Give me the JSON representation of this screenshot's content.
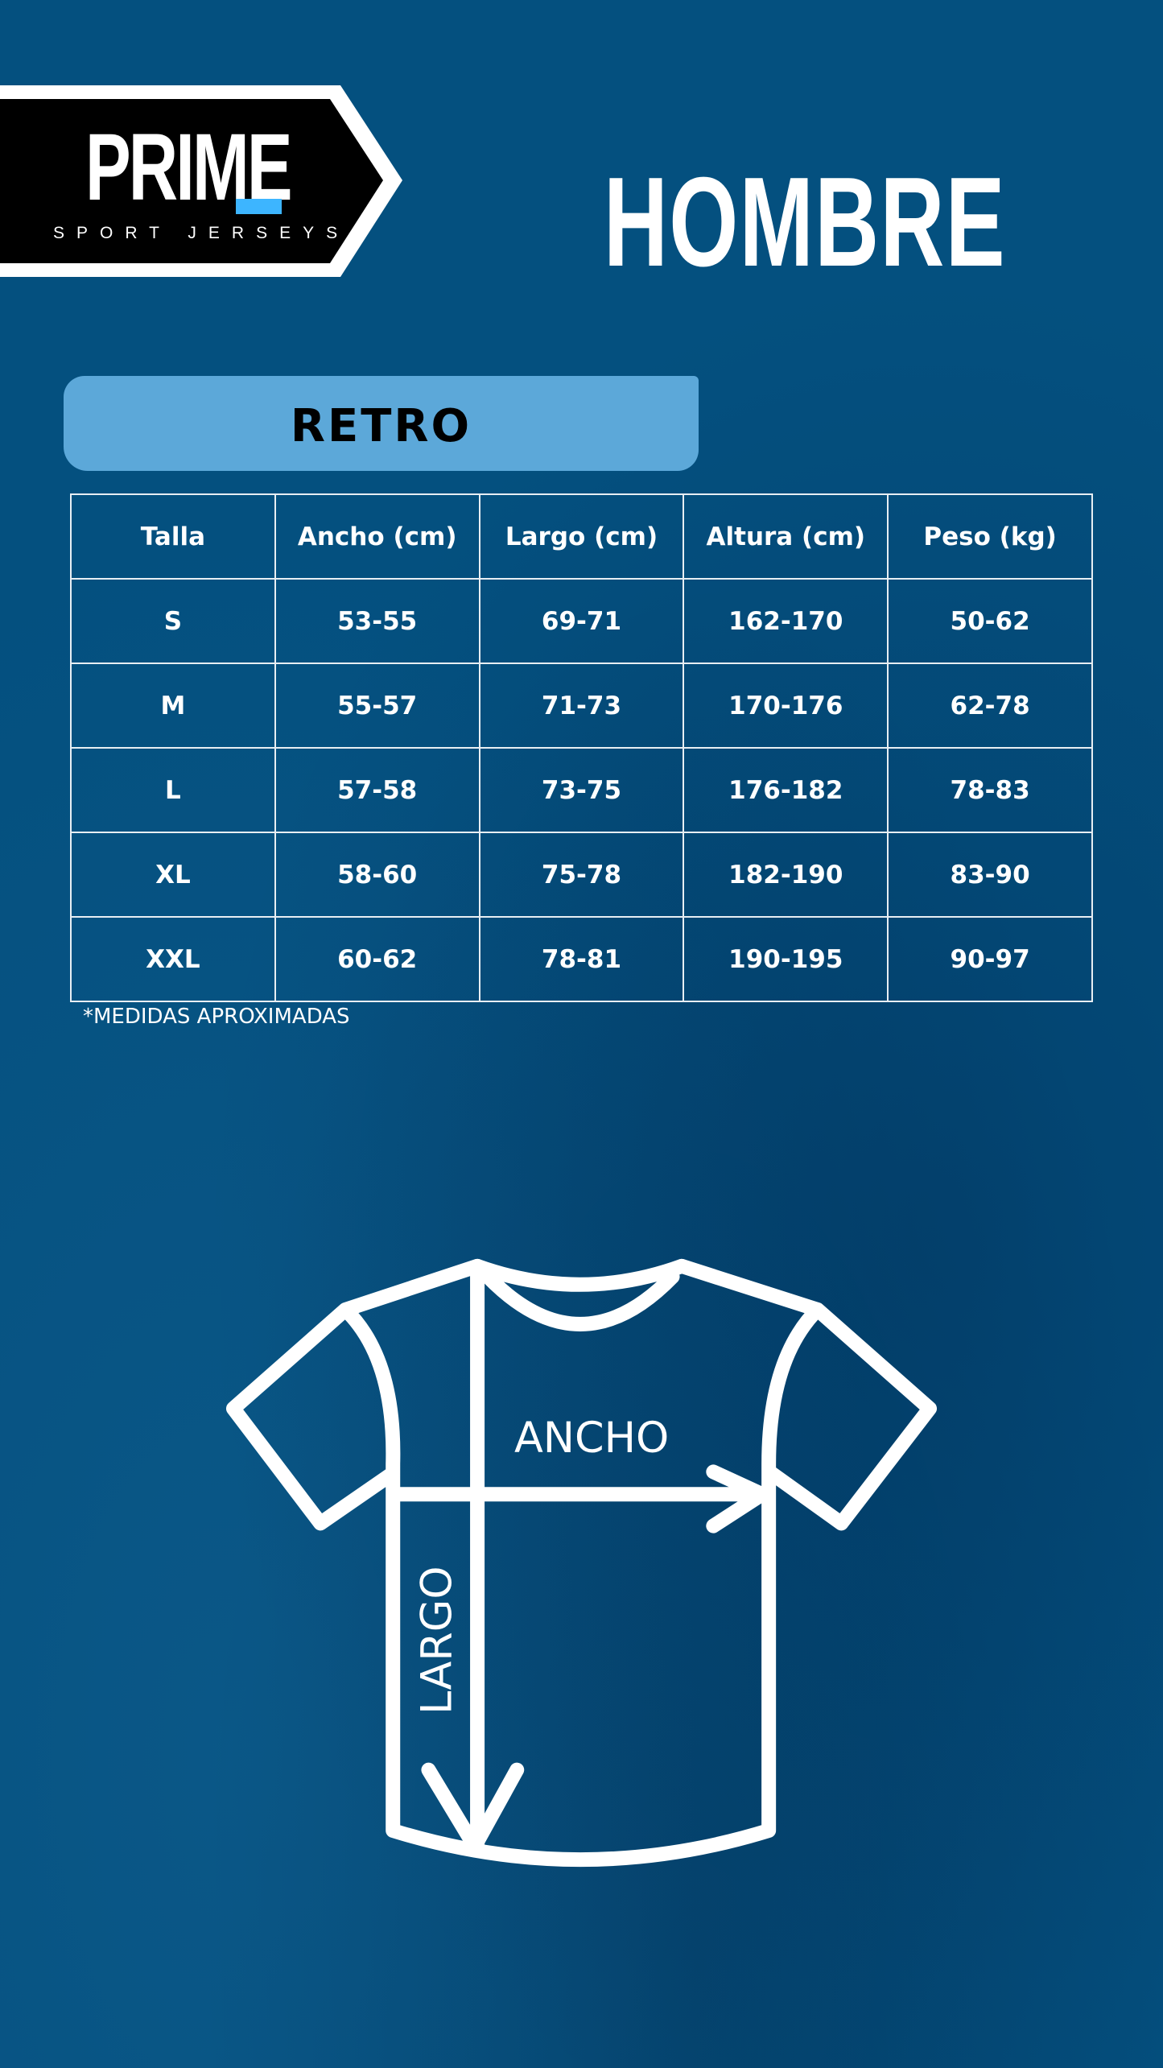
{
  "logo": {
    "brand": "PRIME",
    "tagline": "SPORT JERSEYS",
    "accent": "#3db5ff"
  },
  "title": "HOMBRE",
  "category": "RETRO",
  "table": {
    "headers": [
      "Talla",
      "Ancho (cm)",
      "Largo (cm)",
      "Altura (cm)",
      "Peso (kg)"
    ],
    "rows": [
      [
        "S",
        "53-55",
        "69-71",
        "162-170",
        "50-62"
      ],
      [
        "M",
        "55-57",
        "71-73",
        "170-176",
        "62-78"
      ],
      [
        "L",
        "57-58",
        "73-75",
        "176-182",
        "78-83"
      ],
      [
        "XL",
        "58-60",
        "75-78",
        "182-190",
        "83-90"
      ],
      [
        "XXL",
        "60-62",
        "78-81",
        "190-195",
        "90-97"
      ]
    ]
  },
  "note": "*MEDIDAS APROXIMADAS",
  "diagram": {
    "width_label": "ANCHO",
    "length_label": "LARGO"
  },
  "colors": {
    "background": "#04507f",
    "banner": "#5ca8d9"
  }
}
